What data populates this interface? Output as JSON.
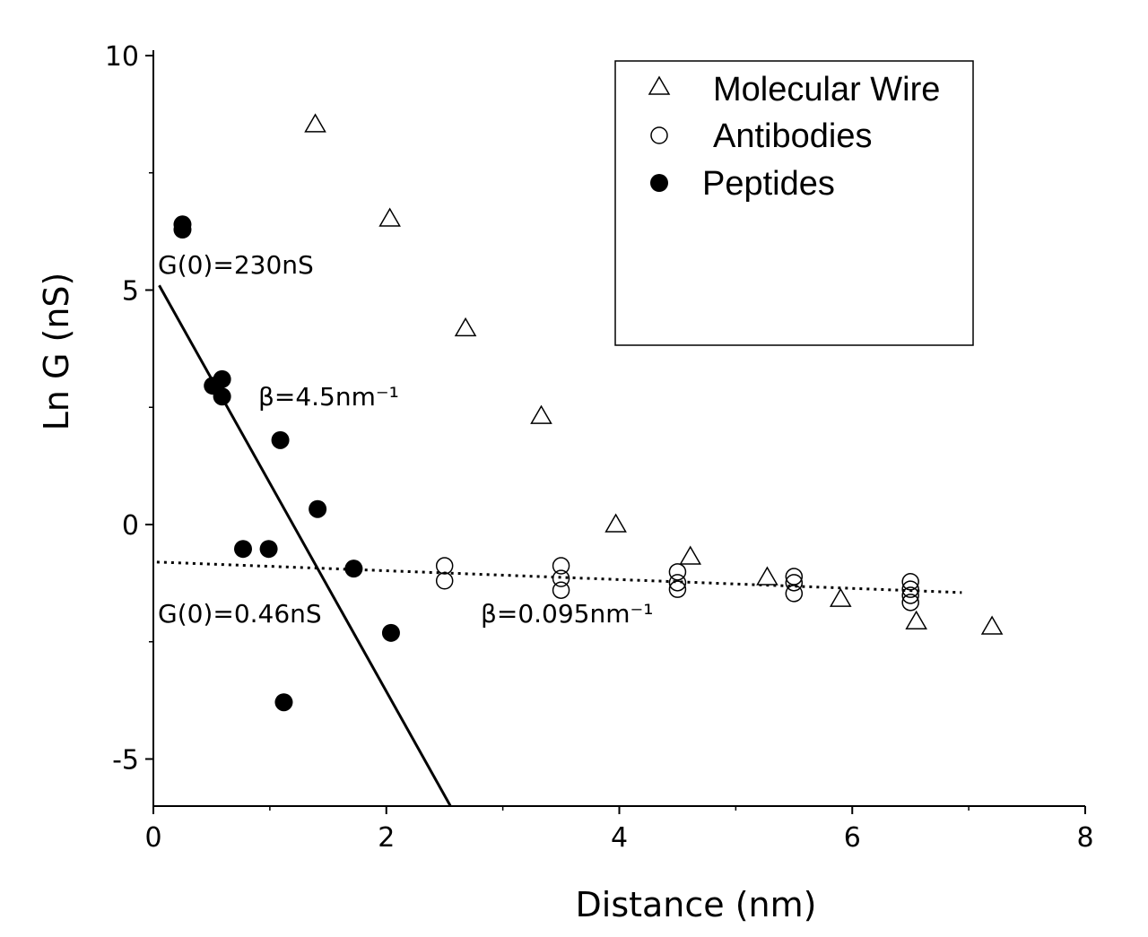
{
  "chart_data": {
    "type": "scatter",
    "title": "",
    "xlabel": "Distance (nm)",
    "ylabel": "Ln G (nS)",
    "xlim": [
      0,
      8
    ],
    "ylim": [
      -6,
      10
    ],
    "xticks": [
      0,
      2,
      4,
      6,
      8
    ],
    "yticks": [
      10,
      5,
      0,
      -5
    ],
    "xtick_labels": [
      "0",
      "2",
      "4",
      "6",
      "8"
    ],
    "ytick_labels": [
      "10",
      "5",
      "0",
      "-5"
    ],
    "grid": false,
    "legend_position": "top-right",
    "series": [
      {
        "name": "Molecular Wire",
        "marker": "open-triangle",
        "x": [
          1.39,
          2.03,
          2.68,
          3.33,
          3.97,
          4.61,
          5.27,
          5.9,
          6.55,
          7.2
        ],
        "y": [
          8.55,
          6.54,
          4.2,
          2.33,
          0.02,
          -0.67,
          -1.11,
          -1.57,
          -2.05,
          -2.16
        ]
      },
      {
        "name": "Antibodies",
        "marker": "open-circle",
        "x": [
          2.5,
          2.5,
          3.5,
          3.5,
          3.5,
          4.5,
          4.5,
          4.5,
          5.5,
          5.5,
          5.5,
          6.5,
          6.5,
          6.5,
          6.5
        ],
        "y": [
          -0.88,
          -1.2,
          -0.88,
          -1.15,
          -1.4,
          -1.01,
          -1.24,
          -1.38,
          -1.11,
          -1.24,
          -1.47,
          -1.22,
          -1.38,
          -1.51,
          -1.66
        ]
      },
      {
        "name": "Peptides",
        "marker": "filled-circle",
        "x": [
          0.25,
          0.25,
          0.51,
          0.59,
          0.59,
          1.09,
          1.41,
          0.77,
          0.99,
          1.72,
          2.04,
          1.12
        ],
        "y": [
          6.4,
          6.29,
          2.96,
          3.1,
          2.73,
          1.8,
          0.33,
          -0.52,
          -0.52,
          -0.94,
          -2.31,
          -3.79
        ]
      }
    ],
    "fits": [
      {
        "name": "peptides-fit",
        "style": "solid",
        "x": [
          0.05,
          2.55
        ],
        "y": [
          5.1,
          -6.0
        ]
      },
      {
        "name": "antibodies-fit",
        "style": "dotted",
        "x": [
          0.03,
          6.94
        ],
        "y": [
          -0.8,
          -1.45
        ]
      }
    ],
    "annotations": {
      "peptides_g0": "G(0)=230nS",
      "peptides_beta": "β=4.5nm⁻¹",
      "antibodies_g0": "G(0)=0.46nS",
      "antibodies_beta": "β=0.095nm⁻¹"
    }
  }
}
